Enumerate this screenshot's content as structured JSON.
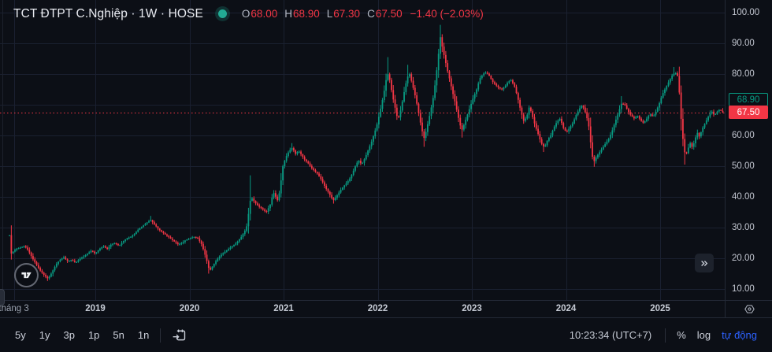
{
  "header": {
    "symbol_title": "TCT ĐTPT C.Nghiệp · 1W · HOSE",
    "status_dot_color": "#22ab94",
    "ohlc": {
      "o_label": "O",
      "o": "68.00",
      "h_label": "H",
      "h": "68.90",
      "l_label": "L",
      "l": "67.30",
      "c_label": "C",
      "c": "67.50",
      "change": "−1.40 (−2.03%)"
    }
  },
  "price_scale": {
    "ticks": [
      {
        "label": "100.00",
        "value": 100
      },
      {
        "label": "90.00",
        "value": 90
      },
      {
        "label": "80.00",
        "value": 80
      },
      {
        "label": "60.00",
        "value": 60
      },
      {
        "label": "50.00",
        "value": 50
      },
      {
        "label": "40.00",
        "value": 40
      },
      {
        "label": "30.00",
        "value": 30
      },
      {
        "label": "20.00",
        "value": 20
      },
      {
        "label": "10.00",
        "value": 10
      }
    ],
    "high_label": {
      "text": "68.90",
      "value": 68.9,
      "style": "outline",
      "color": "#089981"
    },
    "last_label": {
      "text": "67.50",
      "value": 67.5,
      "style": "filled",
      "color": "#f23645"
    }
  },
  "time_scale": {
    "ticks": [
      {
        "label": "tháng 3",
        "t": 2018.134,
        "minor": true
      },
      {
        "label": "2019",
        "t": 2019
      },
      {
        "label": "2020",
        "t": 2020
      },
      {
        "label": "2021",
        "t": 2021
      },
      {
        "label": "2022",
        "t": 2022
      },
      {
        "label": "2023",
        "t": 2023
      },
      {
        "label": "2024",
        "t": 2024
      },
      {
        "label": "2025",
        "t": 2025
      }
    ]
  },
  "toolbar": {
    "ranges": [
      "5y",
      "1y",
      "3p",
      "1p",
      "5n",
      "1n"
    ],
    "clock": "10:23:34 (UTC+7)",
    "percent_label": "%",
    "log_label": "log",
    "auto_label": "tự động"
  },
  "chart_data": {
    "type": "candlestick",
    "symbol": "TCT ĐTPT C.Nghiệp",
    "interval": "1W",
    "exchange": "HOSE",
    "title": "TCT ĐTPT C.Nghiệp · 1W · HOSE",
    "x_axis": {
      "min": 2017.987,
      "max": 2025.686,
      "unit": "year"
    },
    "y_axis": {
      "min": 6.4,
      "max": 104.1,
      "grid": [
        10,
        20,
        30,
        40,
        50,
        60,
        70,
        80,
        90,
        100
      ]
    },
    "grid_color": "#1a2030",
    "colors": {
      "up": "#089981",
      "down": "#f23645"
    },
    "week_step": 0.019231,
    "last_candle": {
      "open": 68.0,
      "high": 68.9,
      "low": 67.3,
      "close": 67.5,
      "change": -1.4,
      "change_pct": -2.03
    },
    "last_price_line": {
      "value": 67.5,
      "style": "dotted",
      "color": "#f23645"
    },
    "anchors": [
      [
        2018.088,
        27.5
      ],
      [
        2018.105,
        21.5
      ],
      [
        2018.155,
        23.0
      ],
      [
        2018.205,
        23.5
      ],
      [
        2018.247,
        24.0
      ],
      [
        2018.289,
        22.5
      ],
      [
        2018.331,
        20.0
      ],
      [
        2018.372,
        18.0
      ],
      [
        2018.414,
        16.0
      ],
      [
        2018.456,
        14.5
      ],
      [
        2018.498,
        13.3
      ],
      [
        2018.54,
        15.5
      ],
      [
        2018.582,
        18.0
      ],
      [
        2018.623,
        19.5
      ],
      [
        2018.665,
        20.3
      ],
      [
        2018.707,
        19.0
      ],
      [
        2018.749,
        19.5
      ],
      [
        2018.791,
        18.5
      ],
      [
        2018.833,
        19.8
      ],
      [
        2018.874,
        20.5
      ],
      [
        2018.916,
        21.5
      ],
      [
        2018.958,
        22.5
      ],
      [
        2019.0,
        21.5
      ],
      [
        2019.042,
        23.0
      ],
      [
        2019.084,
        24.0
      ],
      [
        2019.126,
        23.0
      ],
      [
        2019.167,
        24.5
      ],
      [
        2019.209,
        25.0
      ],
      [
        2019.251,
        24.0
      ],
      [
        2019.293,
        25.5
      ],
      [
        2019.335,
        26.5
      ],
      [
        2019.377,
        27.0
      ],
      [
        2019.418,
        28.0
      ],
      [
        2019.46,
        29.5
      ],
      [
        2019.502,
        30.5
      ],
      [
        2019.544,
        31.5
      ],
      [
        2019.586,
        32.5
      ],
      [
        2019.628,
        31.0
      ],
      [
        2019.669,
        29.5
      ],
      [
        2019.711,
        28.5
      ],
      [
        2019.753,
        27.5
      ],
      [
        2019.795,
        26.5
      ],
      [
        2019.837,
        25.5
      ],
      [
        2019.879,
        24.5
      ],
      [
        2019.92,
        25.0
      ],
      [
        2019.962,
        26.0
      ],
      [
        2020.004,
        26.5
      ],
      [
        2020.046,
        27.0
      ],
      [
        2020.088,
        26.5
      ],
      [
        2020.13,
        24.5
      ],
      [
        2020.172,
        20.5
      ],
      [
        2020.213,
        15.8
      ],
      [
        2020.247,
        17.5
      ],
      [
        2020.289,
        19.5
      ],
      [
        2020.331,
        21.0
      ],
      [
        2020.372,
        22.0
      ],
      [
        2020.414,
        23.0
      ],
      [
        2020.456,
        24.0
      ],
      [
        2020.498,
        25.0
      ],
      [
        2020.54,
        26.5
      ],
      [
        2020.582,
        28.5
      ],
      [
        2020.615,
        31.0
      ],
      [
        2020.64,
        38.5
      ],
      [
        2020.665,
        39.5
      ],
      [
        2020.699,
        38.0
      ],
      [
        2020.732,
        37.0
      ],
      [
        2020.774,
        36.0
      ],
      [
        2020.816,
        35.0
      ],
      [
        2020.858,
        37.5
      ],
      [
        2020.891,
        41.5
      ],
      [
        2020.916,
        40.0
      ],
      [
        2020.941,
        38.5
      ],
      [
        2020.967,
        44.0
      ],
      [
        2020.992,
        50.0
      ],
      [
        2021.025,
        53.0
      ],
      [
        2021.059,
        55.0
      ],
      [
        2021.092,
        56.0
      ],
      [
        2021.126,
        54.0
      ],
      [
        2021.159,
        55.0
      ],
      [
        2021.193,
        53.5
      ],
      [
        2021.226,
        52.0
      ],
      [
        2021.259,
        51.0
      ],
      [
        2021.293,
        49.5
      ],
      [
        2021.326,
        48.5
      ],
      [
        2021.36,
        47.5
      ],
      [
        2021.402,
        45.5
      ],
      [
        2021.444,
        43.0
      ],
      [
        2021.485,
        41.0
      ],
      [
        2021.527,
        38.8
      ],
      [
        2021.569,
        40.5
      ],
      [
        2021.611,
        42.5
      ],
      [
        2021.653,
        44.0
      ],
      [
        2021.695,
        45.5
      ],
      [
        2021.728,
        47.5
      ],
      [
        2021.762,
        50.0
      ],
      [
        2021.795,
        52.0
      ],
      [
        2021.828,
        50.5
      ],
      [
        2021.862,
        52.5
      ],
      [
        2021.895,
        55.0
      ],
      [
        2021.929,
        57.5
      ],
      [
        2021.962,
        60.5
      ],
      [
        2021.996,
        64.0
      ],
      [
        2022.029,
        68.5
      ],
      [
        2022.063,
        73.5
      ],
      [
        2022.088,
        78.0
      ],
      [
        2022.113,
        80.5
      ],
      [
        2022.138,
        76.0
      ],
      [
        2022.163,
        72.0
      ],
      [
        2022.188,
        68.5
      ],
      [
        2022.213,
        65.0
      ],
      [
        2022.238,
        67.5
      ],
      [
        2022.264,
        71.5
      ],
      [
        2022.289,
        75.5
      ],
      [
        2022.314,
        79.0
      ],
      [
        2022.339,
        80.0
      ],
      [
        2022.364,
        77.0
      ],
      [
        2022.389,
        74.0
      ],
      [
        2022.414,
        70.5
      ],
      [
        2022.439,
        66.5
      ],
      [
        2022.464,
        62.5
      ],
      [
        2022.49,
        59.0
      ],
      [
        2022.515,
        61.5
      ],
      [
        2022.54,
        65.0
      ],
      [
        2022.565,
        68.5
      ],
      [
        2022.59,
        72.5
      ],
      [
        2022.615,
        78.0
      ],
      [
        2022.64,
        85.0
      ],
      [
        2022.665,
        92.0
      ],
      [
        2022.69,
        88.0
      ],
      [
        2022.716,
        84.5
      ],
      [
        2022.741,
        81.0
      ],
      [
        2022.766,
        78.0
      ],
      [
        2022.791,
        74.5
      ],
      [
        2022.816,
        71.5
      ],
      [
        2022.841,
        68.0
      ],
      [
        2022.866,
        64.5
      ],
      [
        2022.891,
        61.5
      ],
      [
        2022.916,
        63.5
      ],
      [
        2022.95,
        66.5
      ],
      [
        2022.983,
        69.5
      ],
      [
        2023.017,
        72.5
      ],
      [
        2023.05,
        75.0
      ],
      [
        2023.084,
        78.5
      ],
      [
        2023.117,
        80.0
      ],
      [
        2023.151,
        80.5
      ],
      [
        2023.184,
        79.5
      ],
      [
        2023.218,
        77.5
      ],
      [
        2023.251,
        76.5
      ],
      [
        2023.285,
        75.5
      ],
      [
        2023.318,
        75.0
      ],
      [
        2023.352,
        76.0
      ],
      [
        2023.385,
        77.5
      ],
      [
        2023.418,
        78.0
      ],
      [
        2023.452,
        76.0
      ],
      [
        2023.485,
        72.5
      ],
      [
        2023.519,
        68.0
      ],
      [
        2023.552,
        64.5
      ],
      [
        2023.586,
        66.5
      ],
      [
        2023.611,
        69.5
      ],
      [
        2023.636,
        67.0
      ],
      [
        2023.669,
        63.5
      ],
      [
        2023.703,
        60.5
      ],
      [
        2023.736,
        57.5
      ],
      [
        2023.77,
        56.0
      ],
      [
        2023.803,
        58.5
      ],
      [
        2023.837,
        60.0
      ],
      [
        2023.87,
        62.5
      ],
      [
        2023.904,
        64.5
      ],
      [
        2023.937,
        65.5
      ],
      [
        2023.971,
        62.5
      ],
      [
        2024.004,
        61.0
      ],
      [
        2024.038,
        62.5
      ],
      [
        2024.071,
        64.0
      ],
      [
        2024.105,
        66.5
      ],
      [
        2024.138,
        68.5
      ],
      [
        2024.172,
        70.0
      ],
      [
        2024.205,
        67.5
      ],
      [
        2024.238,
        64.0
      ],
      [
        2024.264,
        57.0
      ],
      [
        2024.289,
        51.0
      ],
      [
        2024.322,
        53.0
      ],
      [
        2024.356,
        54.5
      ],
      [
        2024.389,
        56.0
      ],
      [
        2024.423,
        57.5
      ],
      [
        2024.456,
        59.0
      ],
      [
        2024.49,
        61.5
      ],
      [
        2024.523,
        64.5
      ],
      [
        2024.557,
        67.5
      ],
      [
        2024.59,
        70.5
      ],
      [
        2024.623,
        70.0
      ],
      [
        2024.657,
        68.0
      ],
      [
        2024.69,
        66.5
      ],
      [
        2024.724,
        65.5
      ],
      [
        2024.757,
        66.5
      ],
      [
        2024.791,
        65.0
      ],
      [
        2024.824,
        64.0
      ],
      [
        2024.858,
        65.5
      ],
      [
        2024.891,
        67.0
      ],
      [
        2024.925,
        66.0
      ],
      [
        2024.958,
        68.0
      ],
      [
        2024.992,
        70.5
      ],
      [
        2025.025,
        73.5
      ],
      [
        2025.059,
        75.5
      ],
      [
        2025.092,
        77.5
      ],
      [
        2025.126,
        79.5
      ],
      [
        2025.159,
        80.5
      ],
      [
        2025.193,
        79.0
      ],
      [
        2025.218,
        67.0
      ],
      [
        2025.243,
        58.5
      ],
      [
        2025.268,
        53.0
      ],
      [
        2025.293,
        55.5
      ],
      [
        2025.318,
        57.5
      ],
      [
        2025.343,
        56.0
      ],
      [
        2025.368,
        58.5
      ],
      [
        2025.393,
        61.0
      ],
      [
        2025.418,
        59.5
      ],
      [
        2025.444,
        62.0
      ],
      [
        2025.477,
        64.0
      ],
      [
        2025.51,
        66.0
      ],
      [
        2025.544,
        68.0
      ],
      [
        2025.577,
        66.5
      ],
      [
        2025.611,
        68.0
      ],
      [
        2025.636,
        68.5
      ],
      [
        2025.669,
        67.5
      ]
    ],
    "special_wicks": [
      {
        "t": 2018.5,
        "low": 12.6
      },
      {
        "t": 2019.59,
        "high": 33.8
      },
      {
        "t": 2020.21,
        "low": 15.0
      },
      {
        "t": 2020.65,
        "high": 47.0
      },
      {
        "t": 2021.09,
        "high": 57.5
      },
      {
        "t": 2021.53,
        "low": 37.8
      },
      {
        "t": 2022.11,
        "high": 85.5
      },
      {
        "t": 2022.31,
        "high": 83.0
      },
      {
        "t": 2022.49,
        "low": 56.3
      },
      {
        "t": 2022.67,
        "high": 96.0
      },
      {
        "t": 2022.89,
        "low": 59.3
      },
      {
        "t": 2023.77,
        "low": 54.6
      },
      {
        "t": 2024.29,
        "low": 49.8
      },
      {
        "t": 2024.59,
        "high": 72.8
      },
      {
        "t": 2025.14,
        "high": 82.3
      },
      {
        "t": 2025.27,
        "low": 50.5
      }
    ]
  }
}
